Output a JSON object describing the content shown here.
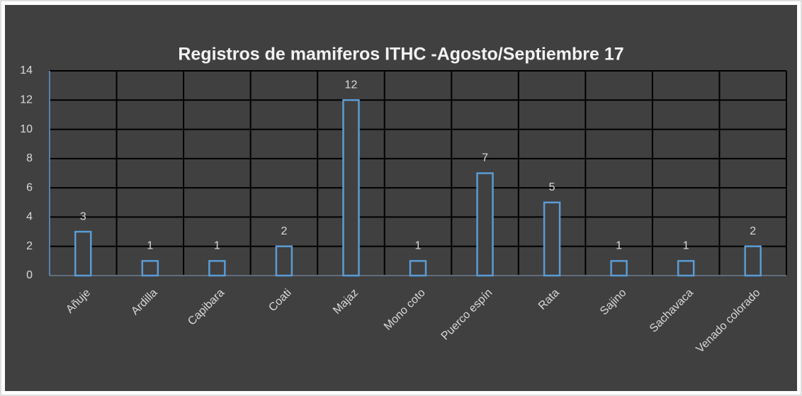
{
  "chart_data": {
    "type": "bar",
    "title": "Registros de mamiferos ITHC -Agosto/Septiembre 17",
    "categories": [
      "Añuje",
      "Ardilla",
      "Capibara",
      "Coati",
      "Majaz",
      "Mono coto",
      "Puerco espín",
      "Rata",
      "Sajino",
      "Sachavaca",
      "Venado colorado"
    ],
    "values": [
      3,
      1,
      1,
      2,
      12,
      1,
      7,
      5,
      1,
      1,
      2
    ],
    "color": "#5b9bd5",
    "ylim": [
      0,
      14
    ],
    "yticks": [
      0,
      2,
      4,
      6,
      8,
      10,
      12,
      14
    ],
    "grid": true
  }
}
